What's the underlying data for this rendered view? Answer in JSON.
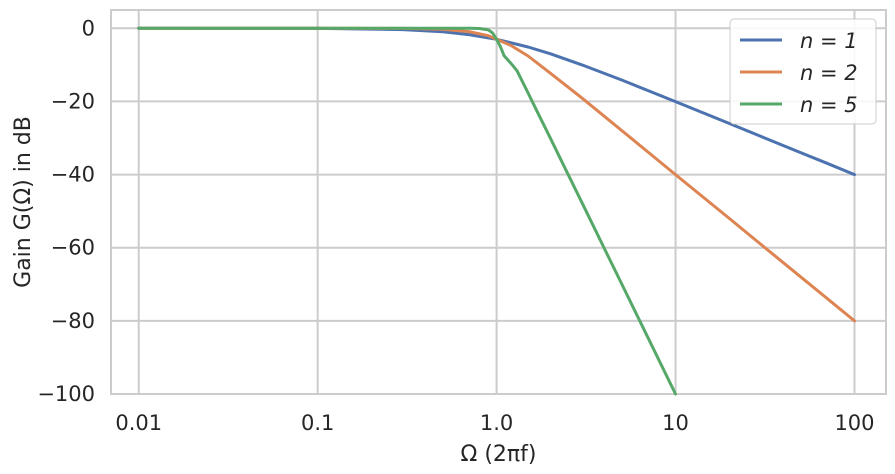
{
  "chart_data": {
    "type": "line",
    "title": "",
    "xlabel": "Ω (2πf)",
    "ylabel": "Gain G(Ω) in dB",
    "x_scale": "log",
    "xlim": [
      0.007,
      150
    ],
    "ylim": [
      -100,
      5
    ],
    "x_ticks": [
      0.01,
      0.1,
      1.0,
      10,
      100
    ],
    "x_tick_labels": [
      "0.01",
      "0.1",
      "1.0",
      "10",
      "100"
    ],
    "y_ticks": [
      0,
      -20,
      -40,
      -60,
      -80,
      -100
    ],
    "y_tick_labels": [
      "0",
      "−20",
      "−40",
      "−60",
      "−80",
      "−100"
    ],
    "grid": true,
    "legend_position": "top-right",
    "series": [
      {
        "name": "n = 1",
        "color": "#4c72b0",
        "x": [
          0.01,
          0.1,
          0.3,
          0.5,
          0.7,
          1.0,
          1.5,
          2,
          3,
          5,
          7,
          10,
          20,
          30,
          50,
          70,
          100
        ],
        "y": [
          0,
          -0.04,
          -0.37,
          -0.97,
          -1.74,
          -3.01,
          -5.12,
          -6.99,
          -10.0,
          -14.15,
          -17.0,
          -20.04,
          -26.03,
          -29.55,
          -33.98,
          -36.9,
          -40.0
        ]
      },
      {
        "name": "n = 2",
        "color": "#dd8452",
        "x": [
          0.01,
          0.1,
          0.3,
          0.5,
          0.7,
          0.9,
          1.0,
          1.2,
          1.5,
          2,
          3,
          5,
          7,
          10,
          20,
          30,
          50,
          70,
          100
        ],
        "y": [
          0,
          0,
          -0.04,
          -0.26,
          -0.91,
          -2.03,
          -3.01,
          -4.68,
          -7.57,
          -12.3,
          -19.1,
          -27.96,
          -33.8,
          -40.0,
          -52.0,
          -59.1,
          -67.96,
          -73.8,
          -80.0
        ]
      },
      {
        "name": "n = 5",
        "color": "#55a868",
        "x": [
          0.01,
          0.1,
          0.5,
          0.7,
          0.8,
          0.9,
          0.95,
          1.0,
          1.05,
          1.1,
          1.2,
          1.3,
          1.5,
          1.7,
          2.0,
          2.5,
          3.0,
          4.0,
          5.0,
          7.0,
          10.0
        ],
        "y": [
          0,
          0,
          0,
          -0.01,
          -0.05,
          -0.44,
          -1.29,
          -3.01,
          -5.02,
          -7.47,
          -9.55,
          -11.6,
          -17.7,
          -23.1,
          -30.1,
          -39.8,
          -47.7,
          -60.2,
          -69.9,
          -84.5,
          -100.0
        ]
      }
    ]
  }
}
